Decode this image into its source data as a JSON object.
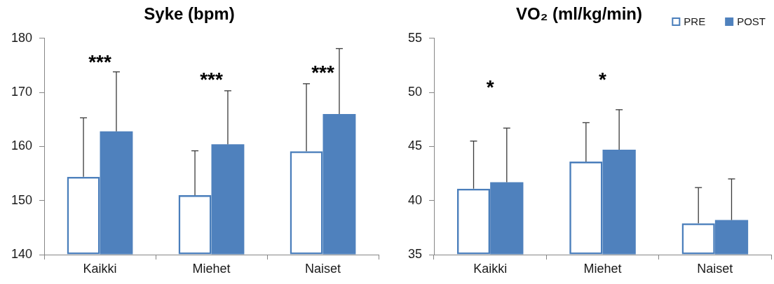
{
  "chart_data": [
    {
      "type": "bar",
      "title": "Syke (bpm)",
      "categories": [
        "Kaikki",
        "Miehet",
        "Naiset"
      ],
      "series": [
        {
          "color": "#4a7ebb",
          "values": [
            154.4,
            151.0,
            159.1
          ],
          "errors": [
            [
              154.4,
              165.3
            ],
            [
              151.0,
              159.2
            ],
            [
              159.1,
              171.6
            ]
          ]
        },
        {
          "color": "#4f81bd",
          "values": [
            162.8,
            160.4,
            166.0
          ],
          "errors": [
            [
              162.8,
              173.8
            ],
            [
              160.4,
              170.3
            ],
            [
              166.0,
              178.1
            ]
          ]
        }
      ],
      "ylim": [
        140,
        180
      ],
      "yticks": [
        140,
        150,
        160,
        170,
        180
      ],
      "annotations": [
        "***",
        "***",
        "***"
      ]
    },
    {
      "type": "bar",
      "title": "VO₂ (ml/kg/min)",
      "categories": [
        "Kaikki",
        "Miehet",
        "Naiset"
      ],
      "series": [
        {
          "name": "PRE",
          "color": "#4a7ebb",
          "values": [
            41.1,
            43.6,
            37.9
          ],
          "errors": [
            [
              41.1,
              45.5
            ],
            [
              43.6,
              47.2
            ],
            [
              37.9,
              41.2
            ]
          ]
        },
        {
          "name": "POST",
          "color": "#4f81bd",
          "values": [
            41.7,
            44.7,
            38.2
          ],
          "errors": [
            [
              41.7,
              46.7
            ],
            [
              44.7,
              48.4
            ],
            [
              38.2,
              42.0
            ]
          ]
        }
      ],
      "ylim": [
        35,
        55
      ],
      "yticks": [
        35,
        40,
        45,
        50,
        55
      ],
      "legend": "top right",
      "annotations": [
        "*",
        "*"
      ]
    }
  ]
}
